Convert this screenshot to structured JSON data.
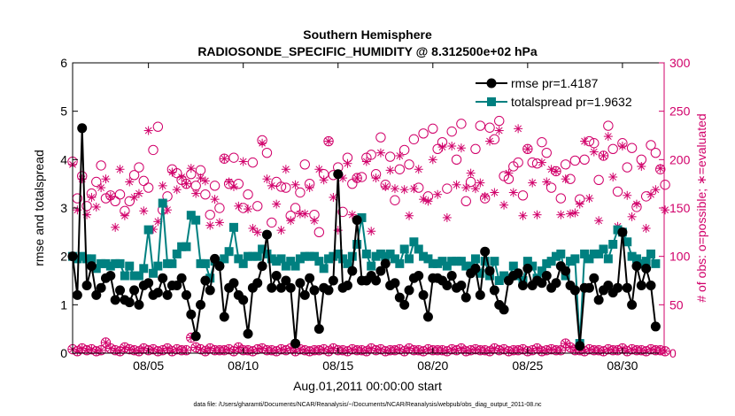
{
  "chart_data": {
    "type": "line",
    "title": "Southern Hemisphere",
    "subtitle": "RADIOSONDE_SPECIFIC_HUMIDITY @ 8.312500e+02 hPa",
    "xlabel": "Aug.01,2011 00:00:00 start",
    "ylabel": "rmse and totalspread",
    "ylabel_right": "# of obs: o=possible; ∗=evaluated",
    "footnote": "data file: /Users/gharamti/Documents/NCAR/Reanalysis/~/Documents/NCAR/Reanalysis/webpub/obs_diag_output_2011-08.nc",
    "xlim": [
      1,
      32.2
    ],
    "ylim": [
      0,
      6
    ],
    "ylim_right": [
      0,
      300
    ],
    "x_ticks": [
      5,
      10,
      15,
      20,
      25,
      30
    ],
    "x_tick_labels": [
      "08/05",
      "08/10",
      "08/15",
      "08/20",
      "08/25",
      "08/30"
    ],
    "y_ticks": [
      0,
      1,
      2,
      3,
      4,
      5,
      6
    ],
    "y_tick_labels": [
      "0",
      "1",
      "2",
      "3",
      "4",
      "5",
      "6"
    ],
    "y_right_ticks": [
      0,
      50,
      100,
      150,
      200,
      250,
      300
    ],
    "y_right_tick_labels": [
      "0",
      "50",
      "100",
      "150",
      "200",
      "250",
      "300"
    ],
    "legend": {
      "placement": "top-right",
      "entries": [
        "rmse pr=1.4187",
        "totalspread pr=1.9632"
      ]
    },
    "colors": {
      "rmse": "#000000",
      "totalspread": "#008080",
      "obs": "#d1006a"
    },
    "x_step": 0.25,
    "x_start": 1.0,
    "series": [
      {
        "name": "rmse",
        "values": [
          2.0,
          1.2,
          4.65,
          1.4,
          1.8,
          1.2,
          1.35,
          1.55,
          1.6,
          1.1,
          1.3,
          1.1,
          1.05,
          1.3,
          1.0,
          1.4,
          1.45,
          1.2,
          1.25,
          1.55,
          1.2,
          1.4,
          1.4,
          1.55,
          1.2,
          0.8,
          0.35,
          1.0,
          1.5,
          1.3,
          1.95,
          1.8,
          0.75,
          1.35,
          1.45,
          1.2,
          1.1,
          0.4,
          1.35,
          1.45,
          1.8,
          2.45,
          1.35,
          1.6,
          1.35,
          1.5,
          1.35,
          0.2,
          1.45,
          1.2,
          1.55,
          1.3,
          0.5,
          1.35,
          1.3,
          1.5,
          3.7,
          1.35,
          1.4,
          1.7,
          2.75,
          1.5,
          1.5,
          1.6,
          1.5,
          1.7,
          1.85,
          1.4,
          1.45,
          1.15,
          1.0,
          1.3,
          1.55,
          1.6,
          1.2,
          0.75,
          1.55,
          1.55,
          1.5,
          1.4,
          1.6,
          1.35,
          1.4,
          1.15,
          1.65,
          1.75,
          1.2,
          2.1,
          1.7,
          1.3,
          1.0,
          0.9,
          1.5,
          1.6,
          1.65,
          1.4,
          1.75,
          1.4,
          1.5,
          1.45,
          1.6,
          1.35,
          1.45,
          1.8,
          1.7,
          1.4,
          1.3,
          0.15,
          1.35,
          1.35,
          1.55,
          1.1,
          1.3,
          1.4,
          1.25,
          1.35,
          2.5,
          1.35,
          1.0,
          1.8,
          1.4,
          1.75,
          1.4,
          0.55
        ]
      },
      {
        "name": "totalspread",
        "values": [
          2.0,
          1.95,
          2.0,
          1.95,
          1.95,
          1.75,
          1.85,
          1.85,
          1.8,
          1.85,
          1.85,
          1.6,
          1.8,
          1.6,
          1.6,
          1.75,
          2.55,
          1.65,
          1.8,
          3.1,
          1.85,
          1.85,
          2.05,
          2.2,
          2.2,
          2.85,
          2.75,
          1.85,
          1.85,
          1.55,
          1.9,
          1.85,
          1.95,
          2.1,
          2.6,
          1.95,
          1.85,
          2.0,
          2.0,
          2.0,
          2.15,
          2.05,
          1.95,
          1.9,
          1.95,
          1.8,
          1.9,
          1.8,
          1.95,
          2.0,
          2.0,
          2.0,
          1.9,
          1.75,
          1.95,
          2.0,
          2.05,
          1.95,
          1.85,
          2.0,
          2.25,
          2.8,
          2.05,
          1.8,
          2.0,
          2.05,
          2.0,
          2.05,
          1.95,
          1.85,
          2.15,
          1.95,
          2.3,
          2.15,
          2.0,
          1.95,
          1.85,
          1.85,
          1.9,
          1.8,
          1.9,
          1.9,
          1.9,
          1.8,
          1.8,
          1.95,
          1.65,
          1.9,
          1.6,
          1.9,
          1.5,
          1.6,
          1.55,
          1.8,
          1.6,
          1.5,
          1.9,
          1.8,
          1.55,
          1.7,
          1.85,
          1.9,
          2.0,
          2.05,
          1.6,
          1.9,
          1.95,
          0.2,
          2.05,
          1.95,
          2.05,
          2.05,
          2.15,
          1.95,
          2.25,
          2.55,
          2.5,
          2.3,
          2.0,
          1.95,
          1.85,
          1.9,
          2.05,
          1.85
        ]
      },
      {
        "name": "obs_possible",
        "axis": "right",
        "values": [
          198,
          160,
          183,
          152,
          165,
          177,
          194,
          160,
          163,
          157,
          164,
          147,
          157,
          184,
          192,
          178,
          171,
          210,
          234,
          148,
          162,
          190,
          186,
          179,
          175,
          185,
          173,
          189,
          164,
          143,
          173,
          150,
          201,
          175,
          202,
          175,
          150,
          164,
          197,
          152,
          220,
          207,
          135,
          177,
          172,
          171,
          142,
          150,
          166,
          195,
          175,
          143,
          125,
          185,
          219,
          184,
          192,
          146,
          202,
          175,
          181,
          182,
          202,
          205,
          185,
          223,
          174,
          203,
          158,
          190,
          210,
          195,
          221,
          171,
          227,
          162,
          232,
          211,
          218,
          170,
          229,
          200,
          237,
          157,
          177,
          211,
          235,
          160,
          233,
          221,
          240,
          183,
          180,
          193,
          197,
          163,
          211,
          197,
          196,
          218,
          207,
          171,
          188,
          160,
          195,
          180,
          199,
          159,
          200,
          219,
          217,
          179,
          204,
          235,
          211,
          167,
          217,
          192,
          212,
          151,
          200,
          162,
          215,
          207,
          190,
          174
        ]
      },
      {
        "name": "obs_evaluated",
        "axis": "right",
        "values": [
          195,
          148,
          180,
          143,
          161,
          151,
          171,
          180,
          162,
          130,
          190,
          142,
          177,
          161,
          165,
          147,
          230,
          128,
          136,
          173,
          148,
          187,
          169,
          182,
          175,
          191,
          165,
          181,
          178,
          132,
          159,
          135,
          201,
          177,
          172,
          152,
          198,
          149,
          129,
          125,
          217,
          180,
          173,
          154,
          127,
          190,
          137,
          174,
          144,
          144,
          171,
          137,
          190,
          179,
          219,
          161,
          127,
          181,
          196,
          143,
          181,
          139,
          198,
          126,
          181,
          207,
          172,
          189,
          170,
          204,
          169,
          142,
          170,
          190,
          159,
          157,
          200,
          164,
          213,
          140,
          214,
          174,
          212,
          171,
          186,
          170,
          176,
          162,
          219,
          166,
          230,
          153,
          186,
          166,
          232,
          142,
          211,
          176,
          143,
          197,
          177,
          190,
          188,
          143,
          180,
          144,
          145,
          154,
          219,
          160,
          208,
          137,
          204,
          224,
          182,
          131,
          214,
          163,
          141,
          154,
          193,
          129,
          164,
          169,
          191,
          148
        ]
      }
    ],
    "obs_bottom_possible": [
      4,
      2,
      5,
      3,
      4,
      2,
      3,
      11,
      5,
      3,
      2,
      6,
      4,
      3,
      2,
      5,
      3,
      4,
      2,
      3,
      5,
      2,
      4,
      3,
      3,
      16,
      6,
      4,
      2,
      5,
      3,
      3,
      3,
      4,
      2,
      6,
      3,
      3,
      2,
      4,
      5,
      3,
      3,
      2,
      4,
      3,
      5,
      2,
      4,
      3,
      2,
      3,
      3,
      4,
      2,
      5,
      3,
      3,
      2,
      4,
      3,
      3,
      2,
      5,
      3,
      4,
      2,
      3,
      3,
      4,
      2,
      5,
      3,
      3,
      2,
      4,
      3,
      3,
      3,
      2,
      4,
      3,
      5,
      2,
      3,
      4,
      3,
      3,
      2,
      5,
      3,
      4,
      2,
      3,
      3,
      4,
      2,
      3,
      5,
      2,
      3,
      4,
      3,
      3,
      10,
      6,
      3,
      3,
      2,
      4,
      3,
      3,
      2,
      4,
      3,
      3,
      5,
      2,
      4,
      3,
      3,
      2,
      4,
      3,
      3,
      2
    ],
    "obs_bottom_evaluated": [
      4,
      2,
      5,
      3,
      4,
      2,
      3,
      11,
      5,
      3,
      2,
      6,
      4,
      3,
      2,
      5,
      3,
      4,
      2,
      3,
      5,
      2,
      4,
      3,
      3,
      16,
      6,
      4,
      2,
      5,
      3,
      3,
      3,
      4,
      2,
      6,
      3,
      3,
      2,
      4,
      5,
      3,
      3,
      2,
      4,
      3,
      5,
      2,
      4,
      3,
      2,
      3,
      3,
      4,
      2,
      5,
      3,
      3,
      2,
      4,
      3,
      3,
      2,
      5,
      3,
      4,
      2,
      3,
      3,
      4,
      2,
      5,
      3,
      3,
      2,
      4,
      3,
      3,
      3,
      2,
      4,
      3,
      5,
      2,
      3,
      4,
      3,
      3,
      2,
      5,
      3,
      4,
      2,
      3,
      3,
      4,
      2,
      3,
      5,
      2,
      3,
      4,
      3,
      3,
      10,
      6,
      3,
      3,
      2,
      4,
      3,
      3,
      2,
      4,
      3,
      3,
      5,
      2,
      4,
      3,
      3,
      2,
      4,
      3,
      3,
      2
    ]
  }
}
